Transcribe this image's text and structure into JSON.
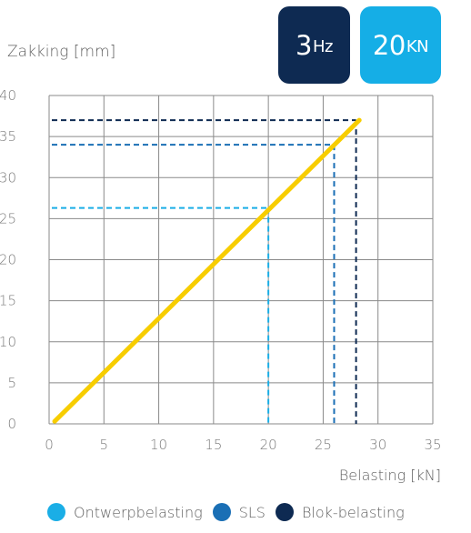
{
  "badges": {
    "frequency": {
      "value": "3",
      "unit": "Hz",
      "color": "#0e2a52"
    },
    "load": {
      "value": "20",
      "unit": "KN",
      "color": "#15aee6"
    }
  },
  "colors": {
    "series_line": "#f7cd00",
    "ontwerpbelasting": "#1aaee6",
    "sls": "#1a6fb5",
    "blok_belasting": "#0e2a52",
    "grid": "#8a8a8a"
  },
  "chart_data": {
    "type": "line",
    "xlabel": "Belasting [kN]",
    "ylabel": "Zakking [mm]",
    "xlim": [
      0,
      35
    ],
    "ylim": [
      0,
      40
    ],
    "xticks": [
      0,
      5,
      10,
      15,
      20,
      25,
      30,
      35
    ],
    "yticks": [
      0,
      5,
      10,
      15,
      20,
      25,
      30,
      35,
      40
    ],
    "grid": true,
    "legend_position": "bottom",
    "series": [
      {
        "x": [
          0.5,
          28.3
        ],
        "y": [
          0.3,
          37
        ]
      }
    ],
    "reference_points": [
      {
        "name": "Ontwerpbelasting",
        "x": 20,
        "y": 26.3
      },
      {
        "name": "SLS",
        "x": 26,
        "y": 34
      },
      {
        "name": "Blok-belasting",
        "x": 28,
        "y": 37
      }
    ]
  }
}
